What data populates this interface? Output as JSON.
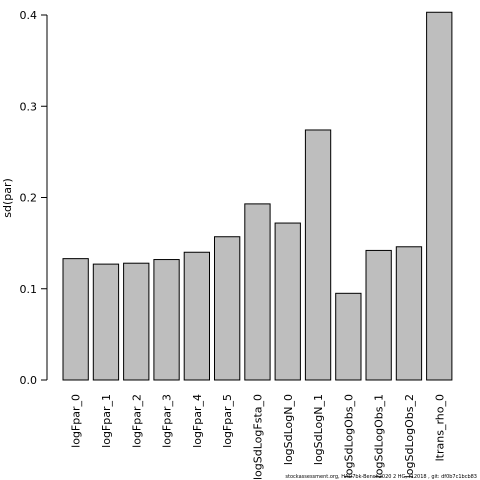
{
  "chart_data": {
    "type": "bar",
    "ylabel": "sd(par)",
    "categories": [
      "logFpar_0",
      "logFpar_1",
      "logFpar_2",
      "logFpar_3",
      "logFpar_4",
      "logFpar_5",
      "logSdLogFsta_0",
      "logSdLogN_0",
      "logSdLogN_1",
      "logSdLogObs_0",
      "logSdLogObs_1",
      "logSdLogObs_2",
      "ltrans_rho_0"
    ],
    "values": [
      0.133,
      0.127,
      0.128,
      0.132,
      0.14,
      0.157,
      0.193,
      0.172,
      0.274,
      0.095,
      0.142,
      0.146,
      0.403
    ],
    "color": "#bebebe",
    "ylim": [
      0,
      0.4
    ],
    "yticks": [
      {
        "value": 0,
        "label": "0.0"
      },
      0.1,
      0.2,
      0.3,
      0.4
    ],
    "footnote": "stockassessment.org, HAD7bk-Bench2020 2 HG, r12018 , git: df0b7c1bcb83"
  }
}
